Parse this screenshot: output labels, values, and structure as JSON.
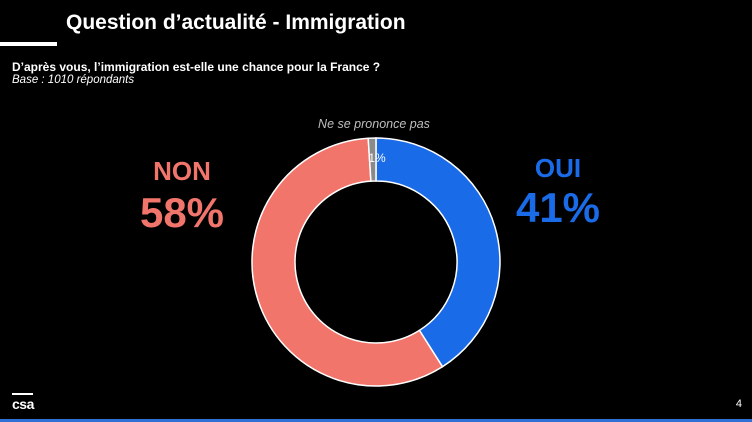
{
  "header": {
    "title": "Question d’actualité - Immigration",
    "question": "D’après vous, l’immigration est-elle une chance pour la France ?",
    "base": "Base : 1010 répondants"
  },
  "chart_data": {
    "type": "pie",
    "style": "donut",
    "slices": [
      {
        "name": "OUI",
        "value": 41,
        "value_label": "41%",
        "color": "#1a6be8"
      },
      {
        "name": "NON",
        "value": 58,
        "value_label": "58%",
        "color": "#f2756c"
      },
      {
        "name": "Ne se prononce pas",
        "value": 1,
        "value_label": "1%",
        "color": "#8a8a8a"
      }
    ]
  },
  "footer": {
    "logo_text": "csa",
    "page_number": "4"
  },
  "colors": {
    "background": "#000000",
    "text": "#ffffff",
    "oui": "#1a6be8",
    "non": "#f2756c",
    "nsp": "#8a8a8a",
    "nsp_label": "#bfbfbf",
    "accent_line": "#2f6fd6"
  }
}
